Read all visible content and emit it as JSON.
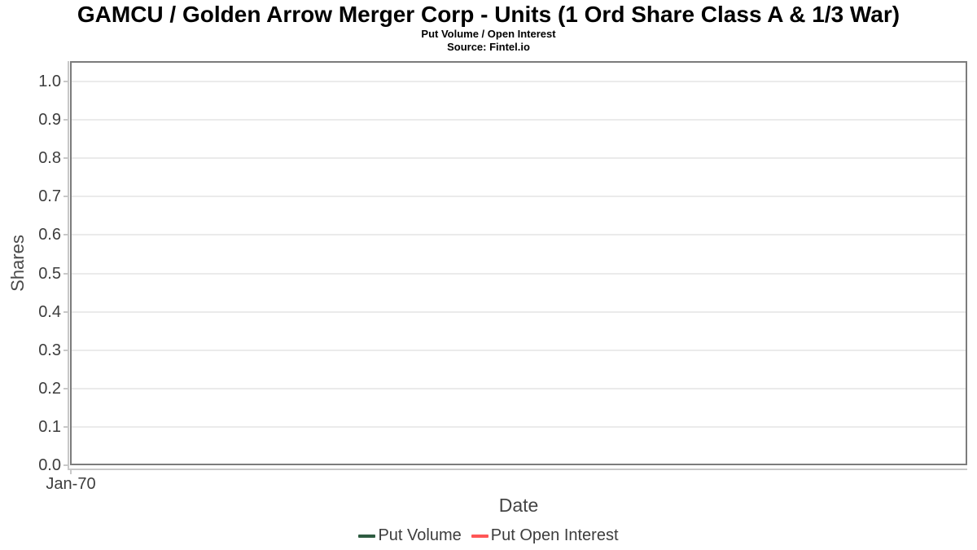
{
  "chart_data": {
    "type": "line",
    "title": "GAMCU / Golden Arrow Merger Corp - Units (1 Ord Share Class A & 1/3 War)",
    "subtitle": "Put Volume / Open Interest",
    "source": "Source: Fintel.io",
    "xlabel": "Date",
    "ylabel": "Shares",
    "x_tick_labels": [
      "Jan-70"
    ],
    "y_ticks": [
      0.0,
      0.1,
      0.2,
      0.3,
      0.4,
      0.5,
      0.6,
      0.7,
      0.8,
      0.9,
      1.0
    ],
    "ylim": [
      0.0,
      1.0
    ],
    "grid": true,
    "legend_position": "bottom",
    "series": [
      {
        "name": "Put Volume",
        "color": "#2e5c41",
        "x": [],
        "values": []
      },
      {
        "name": "Put Open Interest",
        "color": "#ff5656",
        "x": [],
        "values": []
      }
    ]
  },
  "palette": {
    "plot_border": "#7c7c7c",
    "gridline": "#ebebeb",
    "axis_line": "#c8c8c8",
    "tick_text": "#3d3d3d",
    "axis_title_text": "#4a4a4a",
    "title_text": "#000000",
    "background": "#ffffff"
  }
}
